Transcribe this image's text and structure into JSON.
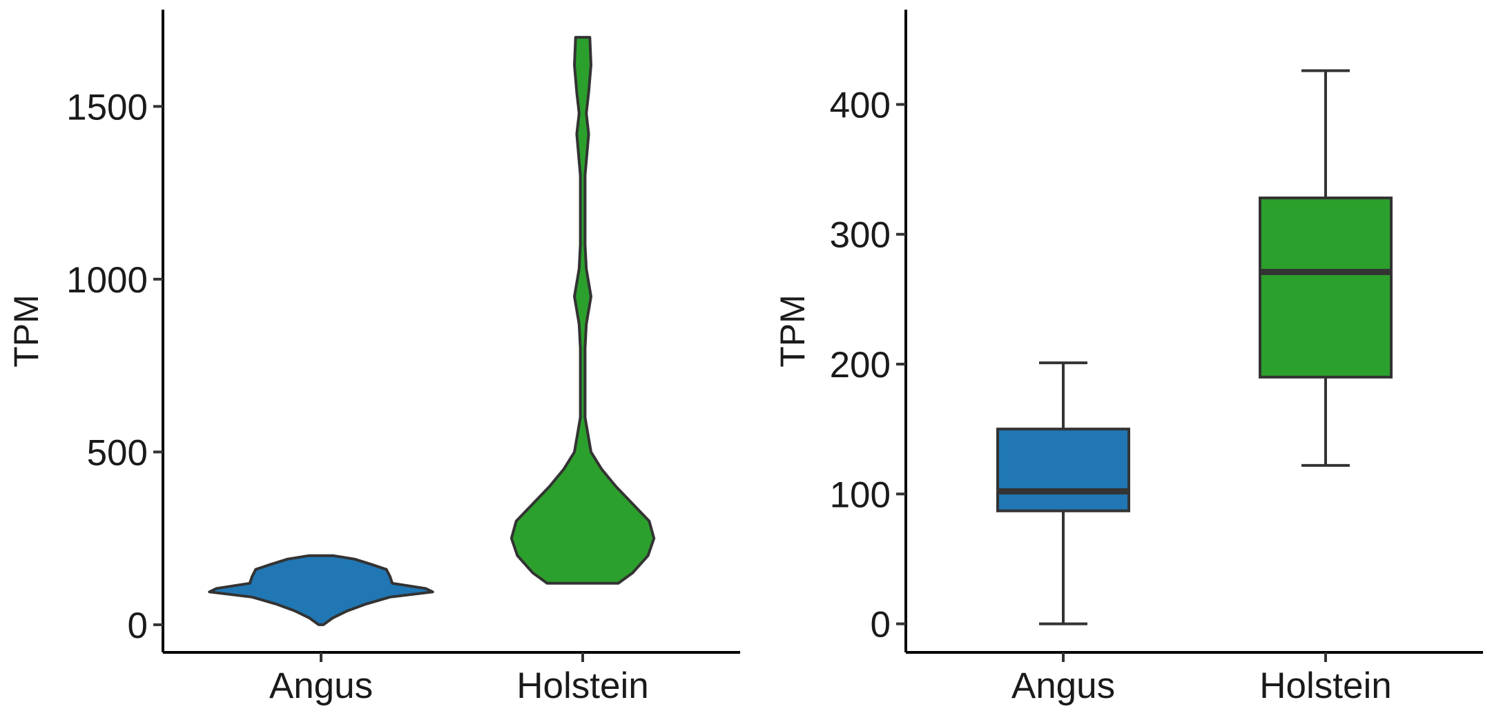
{
  "colors": {
    "angus": "#2077b4",
    "holstein": "#2ca02c",
    "stroke": "#333333",
    "axis": "#000000"
  },
  "chart_data": [
    {
      "type": "violin",
      "title": "",
      "xlabel": "",
      "ylabel": "TPM",
      "categories": [
        "Angus",
        "Holstein"
      ],
      "ylim": [
        -80,
        1780
      ],
      "yticks": [
        0,
        500,
        1000,
        1500
      ],
      "ytick_labels": [
        "0",
        "500",
        "1000",
        "1500"
      ],
      "series": [
        {
          "name": "Angus",
          "min": 0,
          "max": 200,
          "density": [
            [
              0,
              0.02
            ],
            [
              20,
              0.1
            ],
            [
              40,
              0.22
            ],
            [
              60,
              0.38
            ],
            [
              80,
              0.58
            ],
            [
              95,
              0.94
            ],
            [
              105,
              0.88
            ],
            [
              120,
              0.6
            ],
            [
              140,
              0.58
            ],
            [
              160,
              0.55
            ],
            [
              175,
              0.42
            ],
            [
              190,
              0.28
            ],
            [
              200,
              0.1
            ]
          ]
        },
        {
          "name": "Holstein",
          "min": 120,
          "max": 1700,
          "density": [
            [
              120,
              0.3
            ],
            [
              150,
              0.42
            ],
            [
              200,
              0.55
            ],
            [
              250,
              0.6
            ],
            [
              300,
              0.56
            ],
            [
              350,
              0.42
            ],
            [
              400,
              0.28
            ],
            [
              450,
              0.16
            ],
            [
              500,
              0.07
            ],
            [
              600,
              0.02
            ],
            [
              800,
              0.02
            ],
            [
              870,
              0.03
            ],
            [
              950,
              0.07
            ],
            [
              1030,
              0.03
            ],
            [
              1100,
              0.02
            ],
            [
              1300,
              0.02
            ],
            [
              1420,
              0.05
            ],
            [
              1480,
              0.03
            ],
            [
              1540,
              0.05
            ],
            [
              1620,
              0.07
            ],
            [
              1700,
              0.06
            ]
          ]
        }
      ]
    },
    {
      "type": "box",
      "title": "",
      "xlabel": "",
      "ylabel": "TPM",
      "categories": [
        "Angus",
        "Holstein"
      ],
      "ylim": [
        -22,
        473
      ],
      "yticks": [
        0,
        100,
        200,
        300,
        400
      ],
      "ytick_labels": [
        "0",
        "100",
        "200",
        "300",
        "400"
      ],
      "series": [
        {
          "name": "Angus",
          "whisker_low": 0,
          "q1": 87,
          "median": 102,
          "q3": 150,
          "whisker_high": 201
        },
        {
          "name": "Holstein",
          "whisker_low": 122,
          "q1": 190,
          "median": 271,
          "q3": 328,
          "whisker_high": 426
        }
      ]
    }
  ]
}
